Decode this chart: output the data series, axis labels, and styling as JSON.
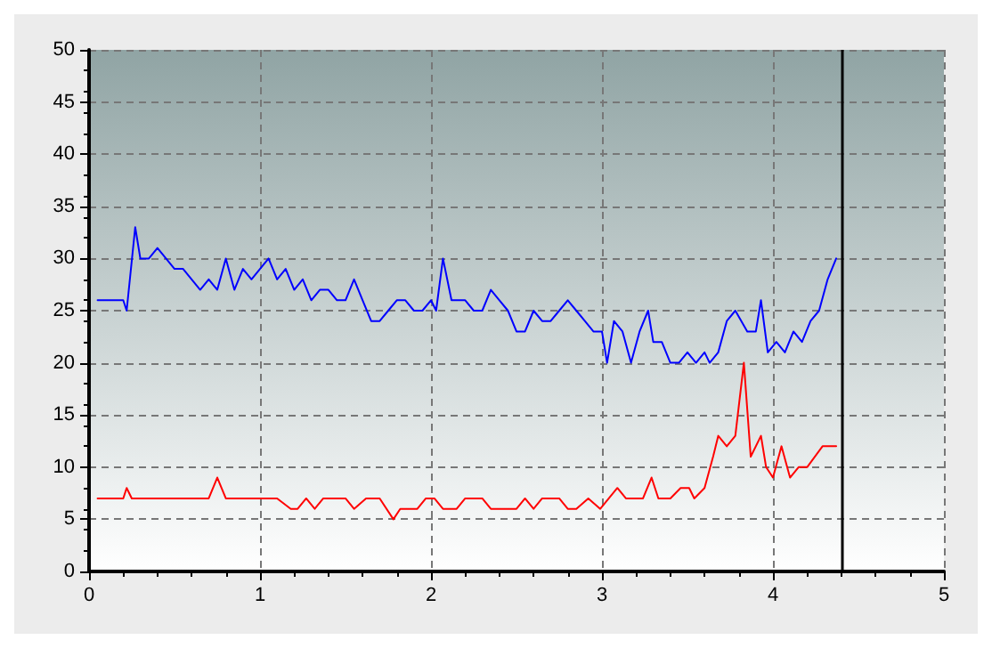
{
  "chart_data": {
    "type": "line",
    "xlim": [
      0,
      5
    ],
    "xticks": [
      0,
      1,
      2,
      3,
      4,
      5
    ],
    "ylim": [
      0,
      50
    ],
    "yticks": [
      0,
      5,
      10,
      15,
      20,
      25,
      30,
      35,
      40,
      45,
      50
    ],
    "grid": true,
    "marker": "none",
    "line_style": "solid",
    "series": [
      {
        "color": "#0000ff",
        "x": [
          0.05,
          0.2,
          0.22,
          0.27,
          0.3,
          0.35,
          0.4,
          0.45,
          0.5,
          0.55,
          0.6,
          0.65,
          0.7,
          0.75,
          0.8,
          0.85,
          0.9,
          0.95,
          1.0,
          1.05,
          1.1,
          1.15,
          1.2,
          1.25,
          1.3,
          1.35,
          1.4,
          1.45,
          1.5,
          1.55,
          1.6,
          1.65,
          1.7,
          1.75,
          1.8,
          1.85,
          1.9,
          1.95,
          2.0,
          2.03,
          2.07,
          2.12,
          2.2,
          2.25,
          2.3,
          2.35,
          2.4,
          2.45,
          2.5,
          2.55,
          2.6,
          2.65,
          2.7,
          2.75,
          2.8,
          2.85,
          2.9,
          2.95,
          3.0,
          3.03,
          3.07,
          3.12,
          3.17,
          3.22,
          3.27,
          3.3,
          3.35,
          3.4,
          3.45,
          3.5,
          3.55,
          3.6,
          3.63,
          3.68,
          3.73,
          3.78,
          3.85,
          3.9,
          3.93,
          3.97,
          4.02,
          4.07,
          4.12,
          4.17,
          4.22,
          4.27,
          4.32,
          4.37
        ],
        "values": [
          26,
          26,
          25,
          33,
          30,
          30,
          31,
          30,
          29,
          29,
          28,
          27,
          28,
          27,
          30,
          27,
          29,
          28,
          29,
          30,
          28,
          29,
          27,
          28,
          26,
          27,
          27,
          26,
          26,
          28,
          26,
          24,
          24,
          25,
          26,
          26,
          25,
          25,
          26,
          25,
          30,
          26,
          26,
          25,
          25,
          27,
          26,
          25,
          23,
          23,
          25,
          24,
          24,
          25,
          26,
          25,
          24,
          23,
          23,
          20,
          24,
          23,
          20,
          23,
          25,
          22,
          22,
          20,
          20,
          21,
          20,
          21,
          20,
          21,
          24,
          25,
          23,
          23,
          26,
          21,
          22,
          21,
          23,
          22,
          24,
          25,
          28,
          30
        ]
      },
      {
        "color": "#ff0000",
        "x": [
          0.05,
          0.2,
          0.22,
          0.25,
          0.7,
          0.75,
          0.8,
          1.1,
          1.18,
          1.22,
          1.27,
          1.32,
          1.37,
          1.5,
          1.55,
          1.62,
          1.7,
          1.78,
          1.82,
          1.92,
          1.97,
          2.02,
          2.07,
          2.15,
          2.2,
          2.3,
          2.35,
          2.5,
          2.55,
          2.6,
          2.65,
          2.75,
          2.8,
          2.85,
          2.92,
          2.99,
          3.09,
          3.14,
          3.24,
          3.29,
          3.33,
          3.4,
          3.46,
          3.51,
          3.54,
          3.6,
          3.65,
          3.68,
          3.73,
          3.78,
          3.83,
          3.87,
          3.93,
          3.96,
          4.0,
          4.05,
          4.1,
          4.15,
          4.2,
          4.29,
          4.37
        ],
        "values": [
          7,
          7,
          8,
          7,
          7,
          9,
          7,
          7,
          6,
          6,
          7,
          6,
          7,
          7,
          6,
          7,
          7,
          5,
          6,
          6,
          7,
          7,
          6,
          6,
          7,
          7,
          6,
          6,
          7,
          6,
          7,
          7,
          6,
          6,
          7,
          6,
          8,
          7,
          7,
          9,
          7,
          7,
          8,
          8,
          7,
          8,
          11,
          13,
          12,
          13,
          20,
          11,
          13,
          10,
          9,
          12,
          9,
          10,
          10,
          12,
          12
        ]
      }
    ],
    "ref_lines": [
      {
        "axis": "x",
        "value": 4.4,
        "color": "#000000"
      }
    ]
  }
}
